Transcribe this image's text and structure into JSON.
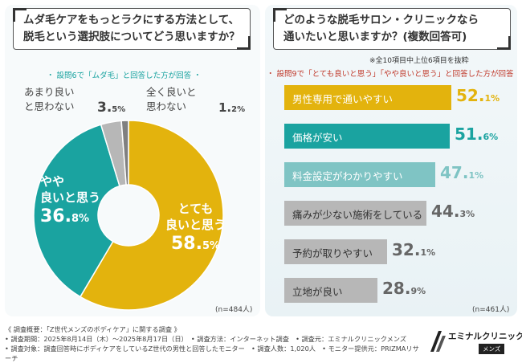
{
  "left": {
    "question_line1": "ムダ毛ケアをもっとラクにする方法として、",
    "question_line2": "脱毛という選択肢についてどう思いますか？",
    "subtitle": "・ 設問6で「ムダ毛」と回答した方が回答 ・",
    "n_count": "(n=484人)"
  },
  "right": {
    "question_line1": "どのような脱毛サロン・クリニックなら",
    "question_line2": "通いたいと思いますか？(複数回答可)",
    "note": "※全10項目中上位6項目を抜粋",
    "subtitle": "・ 設問9で「とても良いと思う」「やや良いと思う」と回答した方が回答 ・",
    "n_count": "(n=461人)"
  },
  "chart_data": [
    {
      "type": "pie",
      "categories": [
        "とても良いと思う",
        "やや良いと思う",
        "あまり良いと思わない",
        "全く良いと思わない"
      ],
      "label_lines": [
        [
          "とても",
          "良いと思う"
        ],
        [
          "やや",
          "良いと思う"
        ],
        [
          "あまり良い",
          "と思わない"
        ],
        [
          "全く良いと",
          "思わない"
        ]
      ],
      "values": [
        58.5,
        36.8,
        3.5,
        1.2
      ],
      "value_labels": [
        [
          "58.",
          "5%"
        ],
        [
          "36.",
          "8%"
        ],
        [
          "3.",
          "5%"
        ],
        [
          "1.",
          "2%"
        ]
      ],
      "colors": [
        "#e3b30d",
        "#1aa3a0",
        "#b7b7b7",
        "#808080"
      ],
      "unit": "%"
    },
    {
      "type": "bar",
      "orientation": "horizontal",
      "categories": [
        "男性専用で通いやすい",
        "価格が安い",
        "料金設定がわかりやすい",
        "痛みが少ない施術をしている",
        "予約が取りやすい",
        "立地が良い"
      ],
      "values": [
        52.1,
        51.6,
        47.1,
        44.3,
        32.1,
        28.9
      ],
      "value_labels": [
        [
          "52.",
          "1%"
        ],
        [
          "51.",
          "6%"
        ],
        [
          "47.",
          "1%"
        ],
        [
          "44.",
          "3%"
        ],
        [
          "32.",
          "1%"
        ],
        [
          "28.",
          "9%"
        ]
      ],
      "colors": [
        "#e3b30d",
        "#1aa3a0",
        "#7fc4c4",
        "#b7b7b7",
        "#b7b7b7",
        "#b7b7b7"
      ],
      "text_colors": [
        "#ffffff",
        "#ffffff",
        "#ffffff",
        "#333333",
        "#333333",
        "#333333"
      ],
      "value_colors": [
        "#e3b30d",
        "#1aa3a0",
        "#7fc4c4",
        "#666666",
        "#666666",
        "#666666"
      ],
      "unit": "%"
    }
  ],
  "footer": {
    "line1": "《 調査概要：「Z世代メンズのボディケア」に関する調査 》",
    "line2": "• 調査期間：2025年8月14日（木）～2025年8月17日（日）　• 調査方法：インターネット調査　• 調査元：エミナルクリニックメンズ",
    "line3": "• 調査対象：調査回答時にボディケアをしているZ世代の男性と回答したモニター　• 調査人数：1,020人　• モニター提供元：PRIZMAリサーチ"
  },
  "logo": {
    "name": "エミナルクリニック",
    "tag": "メンズ"
  }
}
